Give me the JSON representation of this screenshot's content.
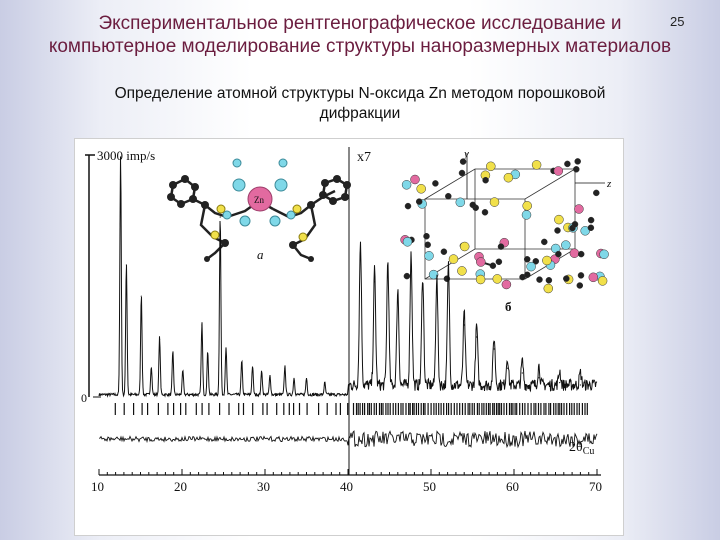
{
  "slide": {
    "title_line1": "Экспериментальное рентгенографическое исследование и",
    "title_line2": "компьютерное моделирование структуры наноразмерных материалов",
    "number": "25",
    "subtitle_line1": "Определение атомной структуры N-оксида Zn методом порошковой",
    "subtitle_line2": "дифракции"
  },
  "figure": {
    "intensity_label": "3000 imp/s",
    "scale_factor": "x7",
    "zero_label": "0",
    "panel_a_label": "а",
    "panel_b_label": "б",
    "xaxis_label": "2θ",
    "xaxis_label_sub": "Cu",
    "zn_label": "Zn",
    "axis_y_label": "y",
    "axis_z_label": "z",
    "x_ticks": [
      "10",
      "20",
      "30",
      "40",
      "50",
      "60",
      "70"
    ]
  },
  "chart_data": {
    "type": "line",
    "xlim": [
      10,
      70
    ],
    "x_ticks": [
      10,
      20,
      30,
      40,
      50,
      60,
      70
    ],
    "scale_change_at": 40,
    "scale_factor_after": 7,
    "y_unit_bar": "3000 imp/s",
    "peaks": [
      {
        "x": 12.6,
        "y": 1.0
      },
      {
        "x": 13.3,
        "y": 0.55
      },
      {
        "x": 15.1,
        "y": 0.42
      },
      {
        "x": 16.3,
        "y": 0.12
      },
      {
        "x": 17.3,
        "y": 0.24
      },
      {
        "x": 18.9,
        "y": 0.18
      },
      {
        "x": 20.1,
        "y": 0.1
      },
      {
        "x": 22.4,
        "y": 0.3
      },
      {
        "x": 23.1,
        "y": 0.18
      },
      {
        "x": 24.6,
        "y": 0.75
      },
      {
        "x": 25.3,
        "y": 0.2
      },
      {
        "x": 27.2,
        "y": 0.14
      },
      {
        "x": 28.5,
        "y": 0.12
      },
      {
        "x": 29.6,
        "y": 0.1
      },
      {
        "x": 30.6,
        "y": 0.08
      },
      {
        "x": 32.4,
        "y": 0.12
      },
      {
        "x": 33.5,
        "y": 0.07
      },
      {
        "x": 35.0,
        "y": 0.07
      },
      {
        "x": 37.2,
        "y": 0.05
      },
      {
        "x": 41.5,
        "y": 0.6
      },
      {
        "x": 43.2,
        "y": 0.48
      },
      {
        "x": 44.8,
        "y": 0.52
      },
      {
        "x": 46.0,
        "y": 0.4
      },
      {
        "x": 47.6,
        "y": 0.55
      },
      {
        "x": 49.0,
        "y": 0.46
      },
      {
        "x": 50.7,
        "y": 0.45
      },
      {
        "x": 52.1,
        "y": 0.5
      },
      {
        "x": 54.0,
        "y": 0.3
      },
      {
        "x": 55.5,
        "y": 0.25
      },
      {
        "x": 57.6,
        "y": 0.2
      },
      {
        "x": 59.2,
        "y": 0.12
      },
      {
        "x": 61.0,
        "y": 0.1
      },
      {
        "x": 63.0,
        "y": 0.08
      },
      {
        "x": 65.5,
        "y": 0.06
      },
      {
        "x": 68.0,
        "y": 0.05
      }
    ]
  }
}
